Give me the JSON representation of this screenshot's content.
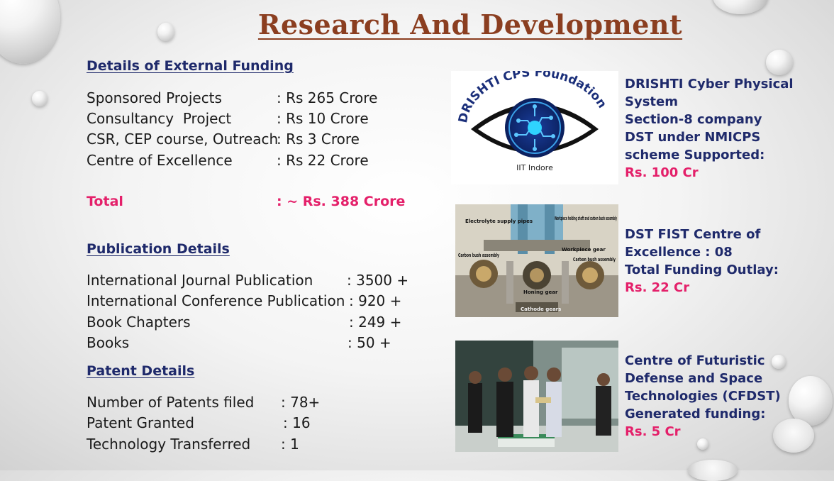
{
  "title": "Research And Development",
  "external_funding": {
    "heading": "Details of External Funding",
    "rows": [
      {
        "label": "Sponsored Projects",
        "value": ": Rs 265 Crore"
      },
      {
        "label": "Consultancy  Project",
        "value": ": Rs 10 Crore"
      },
      {
        "label": "CSR, CEP course, Outreach",
        "value": ": Rs 3 Crore"
      },
      {
        "label": "Centre of Excellence",
        "value": ": Rs 22 Crore"
      }
    ],
    "total_label": "Total",
    "total_value": ": ~ Rs. 388 Crore"
  },
  "publication": {
    "heading": "Publication Details",
    "rows": [
      {
        "label": "International Journal Publication",
        "value": ": 3500 +"
      },
      {
        "label": "International Conference Publication",
        "value": ": 920 +"
      },
      {
        "label": "Book Chapters",
        "value": ": 249 +"
      },
      {
        "label": "Books",
        "value": ": 50 +"
      }
    ]
  },
  "patent": {
    "heading": "Patent Details",
    "rows": [
      {
        "label": "Number of Patents filed",
        "value": ": 78+"
      },
      {
        "label": "Patent Granted",
        "value": ": 16"
      },
      {
        "label": "Technology Transferred",
        "value": ": 1"
      }
    ]
  },
  "cards": [
    {
      "logo_text_top": "DRISHTI CPS Foundation",
      "logo_text_bottom": "IIT Indore",
      "lines": [
        "DRISHTI Cyber Physical",
        "System",
        "Section-8 company",
        "DST under NMICPS",
        "scheme Supported:"
      ],
      "amount": "Rs. 100 Cr"
    },
    {
      "photo_labels": [
        "Electrolyte supply pipes",
        "Workpiece holding shaft and carbon bush assembly",
        "Workpiece gear",
        "Carbon bush assembly",
        "Carbon bush assembly",
        "Honing gear",
        "Cathode gears"
      ],
      "lines": [
        "DST FIST Centre of",
        "Excellence : 08",
        "Total Funding Outlay:"
      ],
      "amount": "Rs. 22 Cr"
    },
    {
      "lines": [
        "Centre of Futuristic",
        "Defense and Space",
        "Technologies (CFDST)",
        "Generated funding:"
      ],
      "amount": "Rs. 5 Cr"
    }
  ],
  "colors": {
    "title": "#8b3e20",
    "heading": "#1f2a6b",
    "accent": "#e4206a"
  }
}
